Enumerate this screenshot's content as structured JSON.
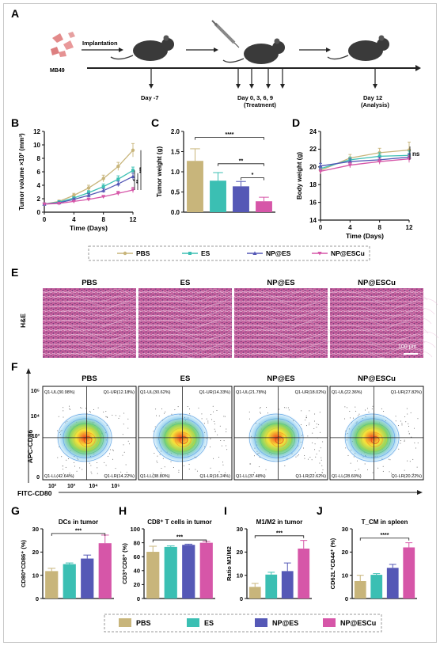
{
  "panels": {
    "a": {
      "letter": "A",
      "implantation": "Implantation",
      "cell": "MB49",
      "day_m7": "Day -7",
      "treatment_days": "Day 0, 3, 6, 9",
      "treatment": "(Treatment)",
      "day12": "Day 12",
      "analysis": "(Analysis)"
    },
    "b": {
      "letter": "B",
      "xlabel": "Time (Days)",
      "ylabel": "Tumor volume ×10² (mm³)"
    },
    "c": {
      "letter": "C",
      "ylabel": "Tumor weight (g)"
    },
    "d": {
      "letter": "D",
      "xlabel": "Time (Days)",
      "ylabel": "Body weight (g)",
      "ns": "ns"
    },
    "e": {
      "letter": "E",
      "row_label": "H&E",
      "scale": "100 μm"
    },
    "f": {
      "letter": "F",
      "ylabel": "APC-CD86",
      "xlabel": "FITC-CD80"
    },
    "g": {
      "letter": "G",
      "title": "DCs in tumor",
      "ylabel": "CD80⁺CD86⁺ (%)"
    },
    "h": {
      "letter": "H",
      "title": "CD8⁺ T cells in tumor",
      "ylabel": "CD3⁺CD8⁺ (%)"
    },
    "i": {
      "letter": "I",
      "title": "M1/M2 in tumor",
      "ylabel": "Ratio M1/M2"
    },
    "j": {
      "letter": "J",
      "title": "T_CM in spleen",
      "ylabel": "CD62L⁺CD44⁺ (%)"
    }
  },
  "groups": [
    "PBS",
    "ES",
    "NP@ES",
    "NP@ESCu"
  ],
  "colors": {
    "PBS": "#c8b57b",
    "ES": "#3bbfb3",
    "NP@ES": "#5558b6",
    "NP@ESCu": "#d656a8"
  },
  "flow_quadrants": [
    {
      "ul": "Q1-UL(30.98%)",
      "ur": "Q1-UR(12.18%)",
      "ll": "Q1-LL(42.64%)",
      "lr": "Q1-LR(14.22%)"
    },
    {
      "ul": "Q1-UL(30.62%)",
      "ur": "Q1-UR(14.33%)",
      "ll": "Q1-LL(38.80%)",
      "lr": "Q1-LR(16.24%)"
    },
    {
      "ul": "Q1-UL(21.78%)",
      "ur": "Q1-UR(18.02%)",
      "ll": "Q1-LL(37.48%)",
      "lr": "Q1-LR(22.62%)"
    },
    {
      "ul": "Q1-UL(22.36%)",
      "ur": "Q1-UR(27.82%)",
      "ll": "Q1-LL(28.60%)",
      "lr": "Q1-LR(20.22%)"
    }
  ],
  "chart_data": [
    {
      "panel": "B",
      "type": "line",
      "x": [
        0,
        2,
        4,
        6,
        8,
        10,
        12
      ],
      "xlabel": "Time (Days)",
      "ylabel": "Tumor volume ×10² (mm³)",
      "xlim": [
        0,
        12
      ],
      "ylim": [
        0,
        12
      ],
      "xticks": [
        0,
        4,
        8,
        12
      ],
      "yticks": [
        0,
        2,
        4,
        6,
        8,
        10,
        12
      ],
      "series": [
        {
          "name": "PBS",
          "values": [
            1.2,
            1.6,
            2.5,
            3.6,
            5.0,
            6.8,
            9.2
          ],
          "err": [
            0.1,
            0.2,
            0.3,
            0.4,
            0.5,
            0.6,
            1.0
          ]
        },
        {
          "name": "ES",
          "values": [
            1.2,
            1.5,
            2.1,
            2.9,
            3.8,
            4.9,
            6.2
          ],
          "err": [
            0.1,
            0.2,
            0.2,
            0.3,
            0.4,
            0.5,
            0.5
          ]
        },
        {
          "name": "NP@ES",
          "values": [
            1.2,
            1.4,
            1.9,
            2.5,
            3.2,
            4.2,
            5.3
          ],
          "err": [
            0.1,
            0.1,
            0.2,
            0.3,
            0.3,
            0.4,
            0.5
          ]
        },
        {
          "name": "NP@ESCu",
          "values": [
            1.2,
            1.3,
            1.6,
            1.9,
            2.3,
            2.8,
            3.3
          ],
          "err": [
            0.1,
            0.1,
            0.1,
            0.2,
            0.2,
            0.3,
            0.4
          ]
        }
      ],
      "significance": [
        "*",
        "**",
        "***"
      ]
    },
    {
      "panel": "C",
      "type": "bar",
      "categories": [
        "PBS",
        "ES",
        "NP@ES",
        "NP@ESCu"
      ],
      "values": [
        1.27,
        0.78,
        0.64,
        0.27
      ],
      "err": [
        0.3,
        0.2,
        0.12,
        0.1
      ],
      "ylabel": "Tumor weight (g)",
      "ylim": [
        0,
        2.0
      ],
      "yticks": [
        0.0,
        0.5,
        1.0,
        1.5,
        2.0
      ],
      "significance": [
        "****",
        "**",
        "*"
      ]
    },
    {
      "panel": "D",
      "type": "line",
      "x": [
        0,
        4,
        8,
        12
      ],
      "xlabel": "Time (Days)",
      "ylabel": "Body weight (g)",
      "xlim": [
        0,
        12
      ],
      "ylim": [
        14,
        24
      ],
      "xticks": [
        0,
        4,
        8,
        12
      ],
      "yticks": [
        14,
        16,
        18,
        20,
        22,
        24
      ],
      "series": [
        {
          "name": "PBS",
          "values": [
            19.6,
            21.0,
            21.6,
            21.9
          ],
          "err": [
            0.3,
            0.4,
            0.5,
            0.9
          ]
        },
        {
          "name": "ES",
          "values": [
            19.8,
            20.8,
            21.2,
            21.3
          ],
          "err": [
            0.3,
            0.3,
            0.4,
            0.5
          ]
        },
        {
          "name": "NP@ES",
          "values": [
            20.1,
            20.6,
            20.8,
            21.1
          ],
          "err": [
            0.3,
            0.3,
            0.3,
            0.4
          ]
        },
        {
          "name": "NP@ESCu",
          "values": [
            19.5,
            20.2,
            20.6,
            20.9
          ],
          "err": [
            0.3,
            0.3,
            0.3,
            0.4
          ]
        }
      ],
      "significance": [
        "ns"
      ]
    },
    {
      "panel": "G",
      "type": "bar",
      "title": "DCs in tumor",
      "categories": [
        "PBS",
        "ES",
        "NP@ES",
        "NP@ESCu"
      ],
      "values": [
        11.8,
        14.8,
        17.2,
        23.8
      ],
      "err": [
        1.2,
        0.5,
        1.5,
        3.5
      ],
      "ylabel": "CD80⁺CD86⁺ (%)",
      "ylim": [
        0,
        30
      ],
      "yticks": [
        0,
        10,
        20,
        30
      ],
      "significance": [
        "***"
      ]
    },
    {
      "panel": "H",
      "type": "bar",
      "title": "CD8⁺ T cells in tumor",
      "categories": [
        "PBS",
        "ES",
        "NP@ES",
        "NP@ESCu"
      ],
      "values": [
        67,
        74,
        77,
        80
      ],
      "err": [
        8,
        1.5,
        1,
        2
      ],
      "ylabel": "CD3⁺CD8⁺ (%)",
      "ylim": [
        0,
        100
      ],
      "yticks": [
        0,
        20,
        40,
        60,
        80,
        100
      ],
      "significance": [
        "***"
      ]
    },
    {
      "panel": "I",
      "type": "bar",
      "title": "M1/M2 in tumor",
      "categories": [
        "PBS",
        "ES",
        "NP@ES",
        "NP@ESCu"
      ],
      "values": [
        5.0,
        10.3,
        11.8,
        21.5
      ],
      "err": [
        1.5,
        1.0,
        3.5,
        3.5
      ],
      "ylabel": "Ratio M1/M2",
      "ylim": [
        0,
        30
      ],
      "yticks": [
        0,
        10,
        20,
        30
      ],
      "significance": [
        "***"
      ]
    },
    {
      "panel": "J",
      "type": "bar",
      "title": "T_CM in spleen",
      "categories": [
        "PBS",
        "ES",
        "NP@ES",
        "NP@ESCu"
      ],
      "values": [
        7.5,
        10.2,
        13.2,
        22.0
      ],
      "err": [
        2.5,
        0.5,
        1.5,
        2.0
      ],
      "ylabel": "CD62L⁺CD44⁺ (%)",
      "ylim": [
        0,
        30
      ],
      "yticks": [
        0,
        10,
        20,
        30
      ],
      "significance": [
        "****"
      ]
    }
  ]
}
